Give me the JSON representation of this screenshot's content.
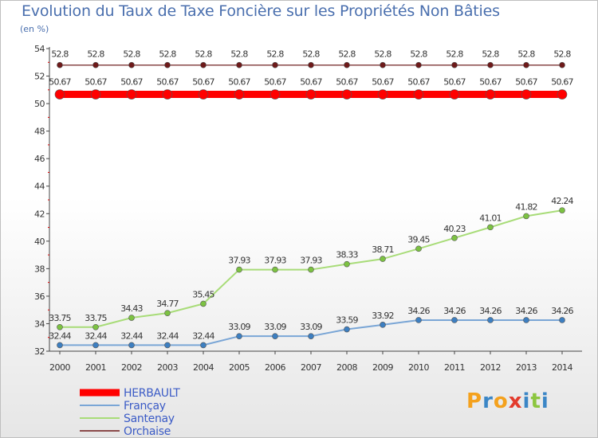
{
  "title": "Evolution du Taux de Taxe Foncière sur les Propriétés Non Bâties",
  "subtitle": "(en %)",
  "logo": {
    "text": "Proxiti",
    "colors": [
      "#f4a11d",
      "#3b86c6",
      "#f4a11d",
      "#e33b2d",
      "#3b86c6",
      "#8cc63f",
      "#3b86c6"
    ]
  },
  "chart_data": {
    "type": "line",
    "title": "Evolution du Taux de Taxe Foncière sur les Propriétés Non Bâties",
    "ylabel": "(en %)",
    "xlabel": "",
    "ylim": [
      32,
      54
    ],
    "yticks": [
      32,
      34,
      36,
      38,
      40,
      42,
      44,
      46,
      48,
      50,
      52,
      54
    ],
    "grid": false,
    "categories": [
      "2000",
      "2001",
      "2002",
      "2003",
      "2004",
      "2005",
      "2006",
      "2007",
      "2008",
      "2009",
      "2010",
      "2011",
      "2012",
      "2013",
      "2014"
    ],
    "series": [
      {
        "name": "HERBAULT",
        "color": "#ff0000",
        "marker": "#ff0000",
        "values": [
          50.67,
          50.67,
          50.67,
          50.67,
          50.67,
          50.67,
          50.67,
          50.67,
          50.67,
          50.67,
          50.67,
          50.67,
          50.67,
          50.67,
          50.67
        ],
        "labels": [
          "50.67",
          "50.67",
          "50.67",
          "50.67",
          "50.67",
          "50.67",
          "50.67",
          "50.67",
          "50.67",
          "50.67",
          "50.67",
          "50.67",
          "50.67",
          "50.67",
          "50.67"
        ]
      },
      {
        "name": "Françay",
        "color": "#7aa6d6",
        "marker": "#3d7fc1",
        "values": [
          32.44,
          32.44,
          32.44,
          32.44,
          32.44,
          33.09,
          33.09,
          33.09,
          33.59,
          33.92,
          34.26,
          34.26,
          34.26,
          34.26,
          34.26
        ],
        "labels": [
          "32.44",
          "32.44",
          "32.44",
          "32.44",
          "32.44",
          "33.09",
          "33.09",
          "33.09",
          "33.59",
          "33.92",
          "34.26",
          "34.26",
          "34.26",
          "34.26",
          "34.26"
        ]
      },
      {
        "name": "Santenay",
        "color": "#a8dc78",
        "marker": "#7cc242",
        "values": [
          33.75,
          33.75,
          34.43,
          34.77,
          35.45,
          37.93,
          37.93,
          37.93,
          38.33,
          38.71,
          39.45,
          40.23,
          41.01,
          41.82,
          42.24
        ],
        "labels": [
          "33.75",
          "33.75",
          "34.43",
          "34.77",
          "35.45",
          "37.93",
          "37.93",
          "37.93",
          "38.33",
          "38.71",
          "39.45",
          "40.23",
          "41.01",
          "41.82",
          "42.24"
        ]
      },
      {
        "name": "Orchaise",
        "color": "#8a4a4a",
        "marker": "#6e1a1a",
        "values": [
          52.8,
          52.8,
          52.8,
          52.8,
          52.8,
          52.8,
          52.8,
          52.8,
          52.8,
          52.8,
          52.8,
          52.8,
          52.8,
          52.8,
          52.8
        ],
        "labels": [
          "52.8",
          "52.8",
          "52.8",
          "52.8",
          "52.8",
          "52.8",
          "52.8",
          "52.8",
          "52.8",
          "52.8",
          "52.8",
          "52.8",
          "52.8",
          "52.8",
          "52.8"
        ]
      }
    ],
    "legend_position": "bottom-left"
  }
}
